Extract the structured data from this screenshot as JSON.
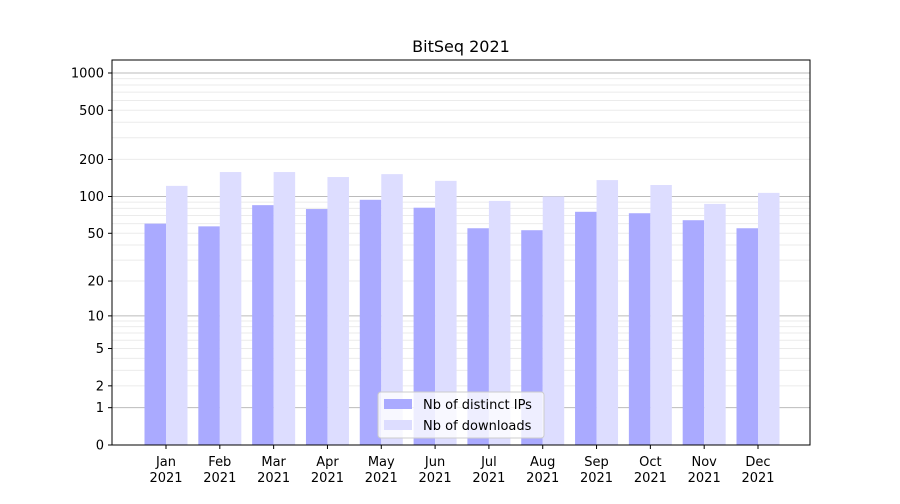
{
  "chart_data": {
    "type": "bar",
    "title": "BitSeq 2021",
    "xlabel": "",
    "ylabel": "",
    "yscale": "log10(1+y)",
    "ylim": [
      0,
      1273
    ],
    "yticks": [
      0,
      1,
      2,
      5,
      10,
      20,
      50,
      100,
      200,
      500,
      1000
    ],
    "grid": true,
    "legend": "bottom-center",
    "categories": [
      "Jan\n2021",
      "Feb\n2021",
      "Mar\n2021",
      "Apr\n2021",
      "May\n2021",
      "Jun\n2021",
      "Jul\n2021",
      "Aug\n2021",
      "Sep\n2021",
      "Oct\n2021",
      "Nov\n2021",
      "Dec\n2021"
    ],
    "series": [
      {
        "name": "Nb of distinct IPs",
        "color": "#aaaaff",
        "values": [
          60,
          57,
          85,
          79,
          94,
          81,
          55,
          53,
          75,
          73,
          64,
          55
        ]
      },
      {
        "name": "Nb of downloads",
        "color": "#ddddff",
        "values": [
          122,
          158,
          158,
          144,
          152,
          134,
          92,
          100,
          136,
          124,
          87,
          107
        ]
      }
    ]
  }
}
